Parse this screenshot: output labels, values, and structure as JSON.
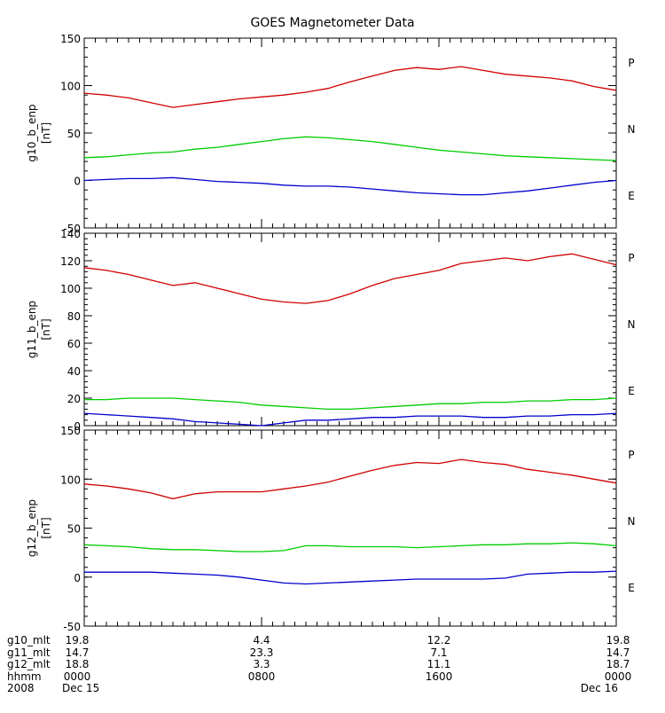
{
  "title": "GOES Magnetometer Data",
  "colors": {
    "P": "#d00000",
    "N": "#00cc00",
    "E": "#0000cc",
    "axis": "#000000"
  },
  "chart_data": [
    {
      "type": "line",
      "ylabel": "g10_b_enp",
      "yunit": "[nT]",
      "ylim": [
        -50,
        150
      ],
      "yticks": [
        -50,
        0,
        50,
        100,
        150
      ],
      "legend": [
        "P",
        "N",
        "E"
      ],
      "series": [
        {
          "name": "P",
          "x": [
            0,
            1,
            2,
            3,
            4,
            5,
            6,
            7,
            8,
            9,
            10,
            11,
            12,
            13,
            14,
            15,
            16,
            17,
            18,
            19,
            20,
            21,
            22,
            23,
            24
          ],
          "values": [
            92,
            90,
            87,
            82,
            77,
            80,
            83,
            86,
            88,
            90,
            93,
            97,
            104,
            110,
            116,
            119,
            117,
            120,
            116,
            112,
            110,
            108,
            105,
            99,
            95
          ]
        },
        {
          "name": "N",
          "x": [
            0,
            1,
            2,
            3,
            4,
            5,
            6,
            7,
            8,
            9,
            10,
            11,
            12,
            13,
            14,
            15,
            16,
            17,
            18,
            19,
            20,
            21,
            22,
            23,
            24
          ],
          "values": [
            24,
            25,
            27,
            29,
            30,
            33,
            35,
            38,
            41,
            44,
            46,
            45,
            43,
            41,
            38,
            35,
            32,
            30,
            28,
            26,
            25,
            24,
            23,
            22,
            21
          ]
        },
        {
          "name": "E",
          "x": [
            0,
            1,
            2,
            3,
            4,
            5,
            6,
            7,
            8,
            9,
            10,
            11,
            12,
            13,
            14,
            15,
            16,
            17,
            18,
            19,
            20,
            21,
            22,
            23,
            24
          ],
          "values": [
            0,
            1,
            2,
            2,
            3,
            1,
            -1,
            -2,
            -3,
            -5,
            -6,
            -6,
            -7,
            -9,
            -11,
            -13,
            -14,
            -15,
            -15,
            -13,
            -11,
            -8,
            -5,
            -2,
            0
          ]
        }
      ]
    },
    {
      "type": "line",
      "ylabel": "g11_b_enp",
      "yunit": "[nT]",
      "ylim": [
        0,
        140
      ],
      "yticks": [
        0,
        20,
        40,
        60,
        80,
        100,
        120,
        140
      ],
      "legend": [
        "P",
        "N",
        "E"
      ],
      "series": [
        {
          "name": "P",
          "x": [
            0,
            1,
            2,
            3,
            4,
            5,
            6,
            7,
            8,
            9,
            10,
            11,
            12,
            13,
            14,
            15,
            16,
            17,
            18,
            19,
            20,
            21,
            22,
            23,
            24
          ],
          "values": [
            115,
            113,
            110,
            106,
            102,
            104,
            100,
            96,
            92,
            90,
            89,
            91,
            96,
            102,
            107,
            110,
            113,
            118,
            120,
            122,
            120,
            123,
            125,
            121,
            117
          ]
        },
        {
          "name": "N",
          "x": [
            0,
            1,
            2,
            3,
            4,
            5,
            6,
            7,
            8,
            9,
            10,
            11,
            12,
            13,
            14,
            15,
            16,
            17,
            18,
            19,
            20,
            21,
            22,
            23,
            24
          ],
          "values": [
            19,
            19,
            20,
            20,
            20,
            19,
            18,
            17,
            15,
            14,
            13,
            12,
            12,
            13,
            14,
            15,
            16,
            16,
            17,
            17,
            18,
            18,
            19,
            19,
            20
          ]
        },
        {
          "name": "E",
          "x": [
            0,
            1,
            2,
            3,
            4,
            5,
            6,
            7,
            8,
            9,
            10,
            11,
            12,
            13,
            14,
            15,
            16,
            17,
            18,
            19,
            20,
            21,
            22,
            23,
            24
          ],
          "values": [
            9,
            8,
            7,
            6,
            5,
            3,
            2,
            1,
            0,
            2,
            4,
            4,
            5,
            6,
            6,
            7,
            7,
            7,
            6,
            6,
            7,
            7,
            8,
            8,
            9
          ]
        }
      ]
    },
    {
      "type": "line",
      "ylabel": "g12_b_enp",
      "yunit": "[nT]",
      "ylim": [
        -50,
        150
      ],
      "yticks": [
        -50,
        0,
        50,
        100,
        150
      ],
      "legend": [
        "P",
        "N",
        "E"
      ],
      "series": [
        {
          "name": "P",
          "x": [
            0,
            1,
            2,
            3,
            4,
            5,
            6,
            7,
            8,
            9,
            10,
            11,
            12,
            13,
            14,
            15,
            16,
            17,
            18,
            19,
            20,
            21,
            22,
            23,
            24
          ],
          "values": [
            95,
            93,
            90,
            86,
            80,
            85,
            87,
            87,
            87,
            90,
            93,
            97,
            103,
            109,
            114,
            117,
            116,
            120,
            117,
            115,
            110,
            107,
            104,
            100,
            96
          ]
        },
        {
          "name": "N",
          "x": [
            0,
            1,
            2,
            3,
            4,
            5,
            6,
            7,
            8,
            9,
            10,
            11,
            12,
            13,
            14,
            15,
            16,
            17,
            18,
            19,
            20,
            21,
            22,
            23,
            24
          ],
          "values": [
            33,
            32,
            31,
            29,
            28,
            28,
            27,
            26,
            26,
            27,
            32,
            32,
            31,
            31,
            31,
            30,
            31,
            32,
            33,
            33,
            34,
            34,
            35,
            34,
            32
          ]
        },
        {
          "name": "E",
          "x": [
            0,
            1,
            2,
            3,
            4,
            5,
            6,
            7,
            8,
            9,
            10,
            11,
            12,
            13,
            14,
            15,
            16,
            17,
            18,
            19,
            20,
            21,
            22,
            23,
            24
          ],
          "values": [
            5,
            5,
            5,
            5,
            4,
            3,
            2,
            0,
            -3,
            -6,
            -7,
            -6,
            -5,
            -4,
            -3,
            -2,
            -2,
            -2,
            -2,
            -1,
            3,
            4,
            5,
            5,
            6
          ]
        }
      ]
    }
  ],
  "x_axis": {
    "ticks": [
      {
        "x": 0,
        "g10": "19.8",
        "g11": "14.7",
        "g12": "18.8",
        "hhmm": "0000",
        "date": "Dec 15"
      },
      {
        "x": 8,
        "g10": "4.4",
        "g11": "23.3",
        "g12": "3.3",
        "hhmm": "0800",
        "date": ""
      },
      {
        "x": 16,
        "g10": "12.2",
        "g11": "7.1",
        "g12": "11.1",
        "hhmm": "1600",
        "date": ""
      },
      {
        "x": 24,
        "g10": "19.8",
        "g11": "14.7",
        "g12": "18.7",
        "hhmm": "0000",
        "date": "Dec 16"
      }
    ],
    "row_labels": [
      "g10_mlt",
      "g11_mlt",
      "g12_mlt",
      "hhmm",
      "2008"
    ],
    "xlim": [
      0,
      24
    ],
    "minor_per_hour": 2
  }
}
